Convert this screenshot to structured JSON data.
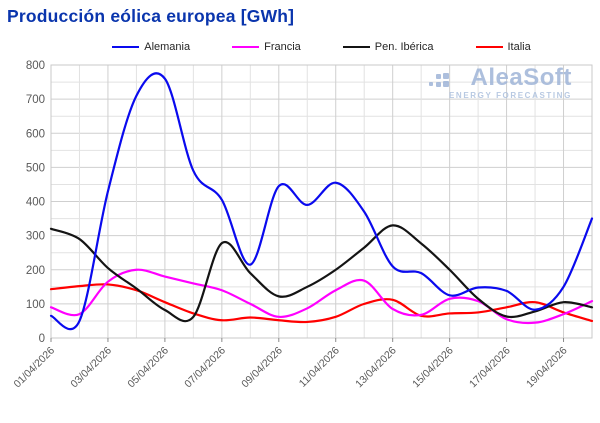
{
  "title": "Producción eólica europea [GWh]",
  "watermark": {
    "brand": "AleaSoft",
    "tagline": "ENERGY FORECASTING"
  },
  "colors": {
    "title": "#0A35AD",
    "grid_minor": "#e2e2e2",
    "grid_major": "#cfcfcf",
    "plot_border": "#c9c9c9",
    "axis_text": "#595959",
    "tick": "#8a8a8a"
  },
  "chart_data": {
    "type": "line",
    "title": "Producción eólica europea [GWh]",
    "x_start": "01/04/2026",
    "x_step_days": 1,
    "n_points": 20,
    "x_tick_labels": [
      "01/04/2026",
      "03/04/2026",
      "05/04/2026",
      "07/04/2026",
      "09/04/2026",
      "11/04/2026",
      "13/04/2026",
      "15/04/2026",
      "17/04/2026",
      "19/04/2026"
    ],
    "y_tick_labels": [
      "0",
      "100",
      "200",
      "300",
      "400",
      "500",
      "600",
      "700",
      "800"
    ],
    "ylim": [
      0,
      800
    ],
    "y_grid_step": 50,
    "grid": true,
    "legend_position": "top",
    "series": [
      {
        "name": "Alemania",
        "color": "#0a0aee",
        "values": [
          65,
          50,
          430,
          710,
          760,
          490,
          405,
          215,
          445,
          390,
          455,
          370,
          210,
          190,
          125,
          148,
          138,
          83,
          150,
          350
        ]
      },
      {
        "name": "Francia",
        "color": "#ff00ff",
        "values": [
          90,
          70,
          165,
          200,
          180,
          160,
          140,
          100,
          62,
          87,
          140,
          168,
          85,
          68,
          115,
          108,
          55,
          45,
          70,
          108
        ]
      },
      {
        "name": "Pen. Ibérica",
        "color": "#141414",
        "values": [
          320,
          290,
          205,
          145,
          82,
          62,
          278,
          190,
          122,
          150,
          200,
          265,
          330,
          277,
          200,
          115,
          63,
          78,
          105,
          90
        ]
      },
      {
        "name": "Italia",
        "color": "#ff0000",
        "values": [
          143,
          152,
          157,
          140,
          105,
          72,
          52,
          60,
          52,
          47,
          62,
          100,
          112,
          65,
          72,
          75,
          90,
          105,
          75,
          50
        ]
      }
    ]
  }
}
